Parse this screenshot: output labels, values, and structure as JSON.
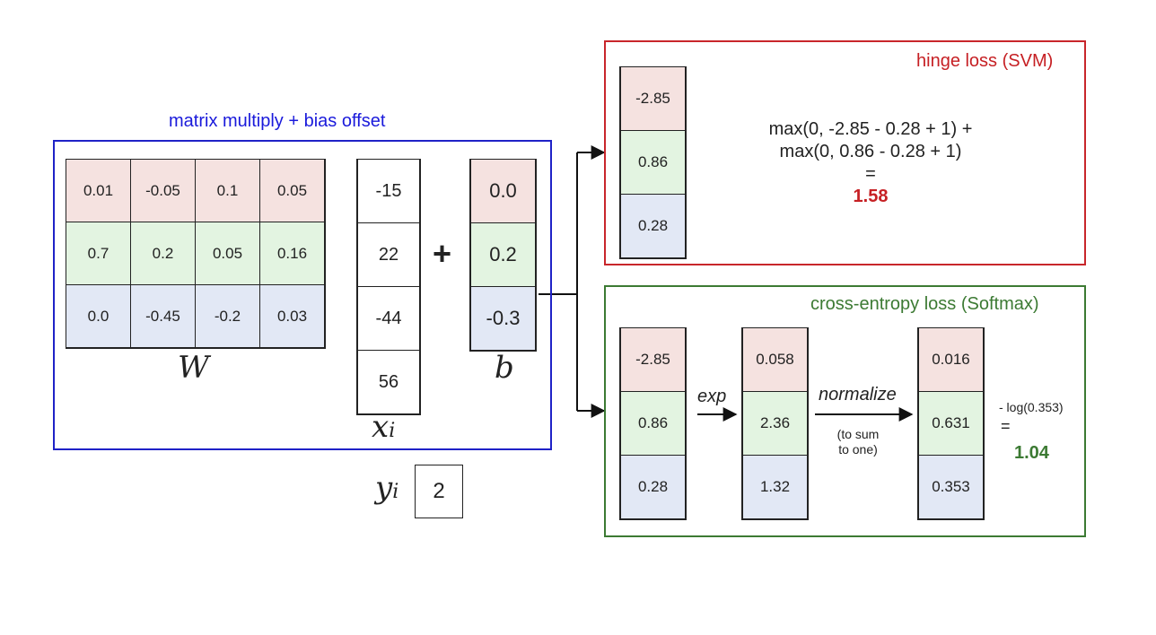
{
  "linear": {
    "title": "matrix multiply + bias offset",
    "W": [
      [
        "0.01",
        "-0.05",
        "0.1",
        "0.05"
      ],
      [
        "0.7",
        "0.2",
        "0.05",
        "0.16"
      ],
      [
        "0.0",
        "-0.45",
        "-0.2",
        "0.03"
      ]
    ],
    "W_label": "W",
    "x": [
      "-15",
      "22",
      "-44",
      "56"
    ],
    "x_label": "x",
    "x_sub": "i",
    "plus": "+",
    "b": [
      "0.0",
      "0.2",
      "-0.3"
    ],
    "b_label": "b",
    "y_label": "y",
    "y_sub": "i",
    "y_value": "2"
  },
  "svm": {
    "title": "hinge loss (SVM)",
    "scores": [
      "-2.85",
      "0.86",
      "0.28"
    ],
    "line1": "max(0, -2.85 - 0.28 + 1) +",
    "line2": "max(0, 0.86 - 0.28 + 1)",
    "eq": "=",
    "result": "1.58"
  },
  "softmax": {
    "title": "cross-entropy loss (Softmax)",
    "scores": [
      "-2.85",
      "0.86",
      "0.28"
    ],
    "exp_label": "exp",
    "exp_values": [
      "0.058",
      "2.36",
      "1.32"
    ],
    "normalize_label": "normalize",
    "normalize_note1": "(to sum",
    "normalize_note2": "to one)",
    "probs": [
      "0.016",
      "0.631",
      "0.353"
    ],
    "loss_expr": "- log(0.353)",
    "eq": "=",
    "result": "1.04"
  },
  "colors": {
    "blue": "#1f22c7",
    "red": "#c8262b",
    "green": "#3c7a33",
    "row0": "#f5e2e0",
    "row1": "#e3f4e1",
    "row2": "#e2e8f5"
  }
}
